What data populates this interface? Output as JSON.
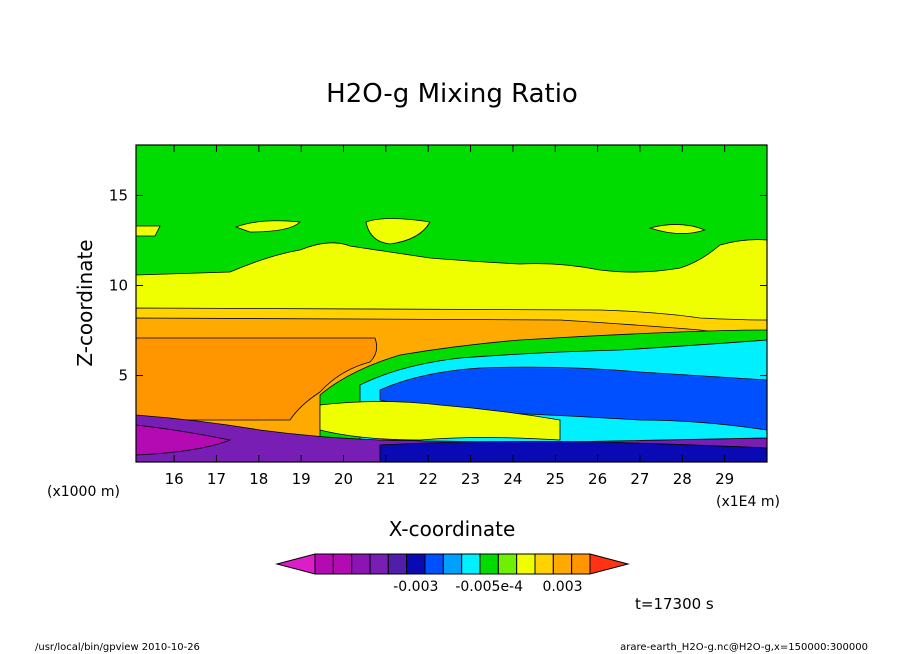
{
  "chart_data": {
    "type": "heatmap",
    "title": "H2O-g Mixing Ratio",
    "xlabel": "X-coordinate",
    "ylabel": "Z-coordinate",
    "x_unit": "(x1E4 m)",
    "z_unit": "(x1000 m)",
    "xlim": [
      15.1,
      30.0
    ],
    "ylim": [
      0.2,
      17.8
    ],
    "x_ticks": [
      "16",
      "17",
      "18",
      "19",
      "20",
      "21",
      "22",
      "23",
      "24",
      "25",
      "26",
      "27",
      "28",
      "29"
    ],
    "x_tick_values": [
      16,
      17,
      18,
      19,
      20,
      21,
      22,
      23,
      24,
      25,
      26,
      27,
      28,
      29
    ],
    "y_ticks": [
      "5",
      "10",
      "15"
    ],
    "y_tick_values": [
      5,
      10,
      15
    ],
    "colorbar": {
      "tick_labels": [
        "-0.003",
        "-0.005e-4",
        "0.003"
      ],
      "colors": [
        "#dc1ec8",
        "#b40ab4",
        "#b40ab4",
        "#8c14b4",
        "#781eb4",
        "#501eaa",
        "#0a0ab4",
        "#0050ff",
        "#00a0ff",
        "#00f0ff",
        "#00dc00",
        "#6ef000",
        "#f0ff00",
        "#ffd200",
        "#ffaa00",
        "#ff9600",
        "#ff3214"
      ]
    },
    "time_label": "t=17300 s"
  },
  "footer": {
    "left": "/usr/local/bin/gpview  2010-10-26",
    "right": "arare-earth_H2O-g.nc@H2O-g,x=150000:300000"
  }
}
